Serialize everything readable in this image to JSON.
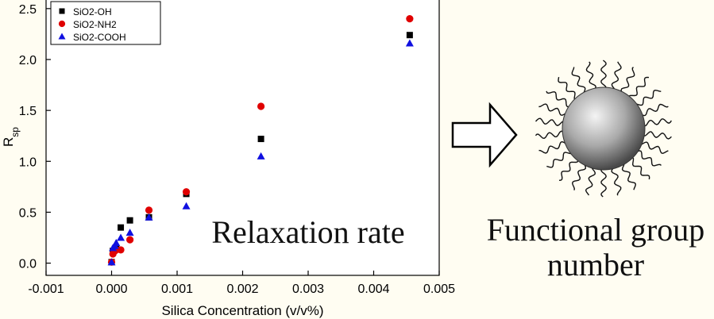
{
  "chart_data": {
    "type": "scatter",
    "xlabel": "Silica Concentration (v/v%)",
    "ylabel": "R",
    "ylabel_subscript": "sp",
    "xlim": [
      -0.001,
      0.005
    ],
    "ylim": [
      -0.12,
      2.6
    ],
    "xticks": [
      -0.001,
      0.0,
      0.001,
      0.002,
      0.003,
      0.004,
      0.005
    ],
    "xtick_labels": [
      "-0.001",
      "0.000",
      "0.001",
      "0.002",
      "0.003",
      "0.004",
      "0.005"
    ],
    "yticks": [
      0.0,
      0.5,
      1.0,
      1.5,
      2.0,
      2.5
    ],
    "ytick_labels": [
      "0.0",
      "0.5",
      "1.0",
      "1.5",
      "2.0",
      "2.5"
    ],
    "legend_position": "top-left",
    "annotation": "Relaxation rate",
    "series": [
      {
        "name": "SiO2-OH",
        "marker": "square",
        "color": "#000000",
        "x": [
          0.0,
          2e-05,
          5e-05,
          7e-05,
          0.00014,
          0.00028,
          0.00057,
          0.00114,
          0.00228,
          0.00455
        ],
        "y": [
          0.01,
          0.12,
          0.14,
          0.15,
          0.35,
          0.42,
          0.45,
          0.68,
          1.22,
          2.24
        ]
      },
      {
        "name": "SiO2-NH2",
        "marker": "circle",
        "color": "#e00000",
        "x": [
          0.0,
          2e-05,
          5e-05,
          7e-05,
          0.00014,
          0.00028,
          0.00057,
          0.00114,
          0.00228,
          0.00455
        ],
        "y": [
          0.01,
          0.09,
          0.12,
          0.13,
          0.13,
          0.23,
          0.52,
          0.7,
          1.54,
          2.4
        ]
      },
      {
        "name": "SiO2-COOH",
        "marker": "triangle",
        "color": "#1010e0",
        "x": [
          0.0,
          2e-05,
          5e-05,
          7e-05,
          0.00014,
          0.00028,
          0.00057,
          0.00114,
          0.00228,
          0.00455
        ],
        "y": [
          0.01,
          0.15,
          0.17,
          0.2,
          0.25,
          0.3,
          0.45,
          0.56,
          1.05,
          2.16
        ]
      }
    ]
  },
  "diagram": {
    "arrow_label": "",
    "caption_line1": "Functional group",
    "caption_line2": "number",
    "nanoparticle_icon": "nanoparticle-with-ligands"
  }
}
